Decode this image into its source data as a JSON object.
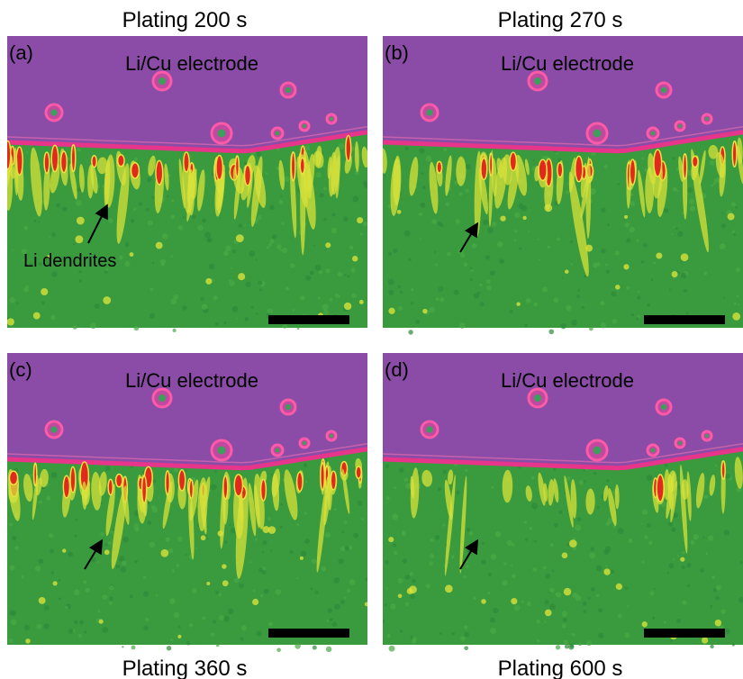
{
  "panels": [
    {
      "title": "Plating 200 s",
      "label": "(a)",
      "electrode": "Li/Cu electrode",
      "annotation": "Li dendrites"
    },
    {
      "title": "Plating 270 s",
      "label": "(b)",
      "electrode": "Li/Cu electrode"
    },
    {
      "title": "Plating 360 s",
      "label": "(c)",
      "electrode": "Li/Cu electrode"
    },
    {
      "title": "Plating 600 s",
      "label": "(d)",
      "electrode": "Li/Cu electrode"
    }
  ]
}
